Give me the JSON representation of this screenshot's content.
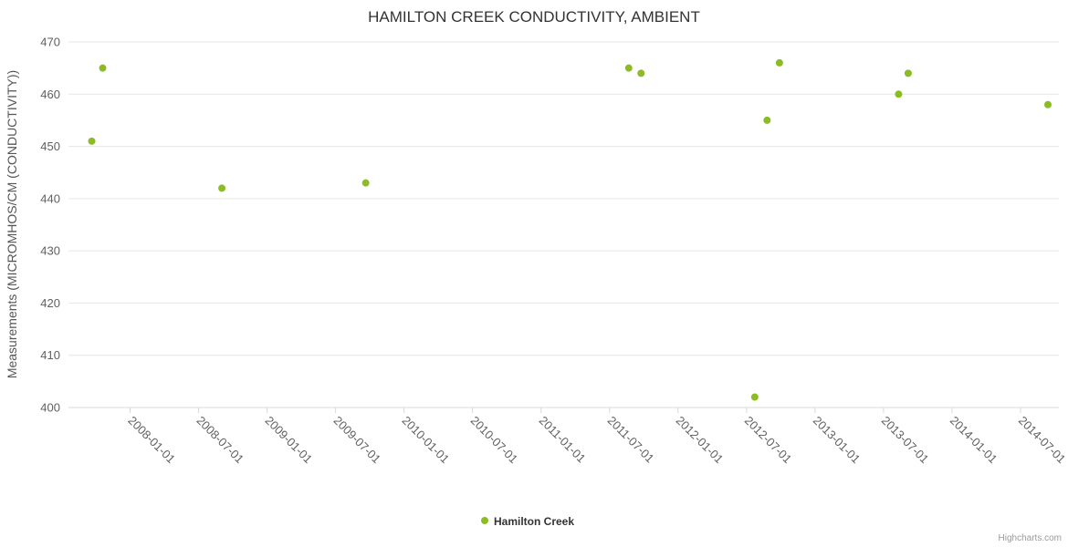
{
  "chart": {
    "credits": "Highcharts.com",
    "colors": {
      "marker": "#8bbc21",
      "grid": "#e6e6e6",
      "axis_line": "#d8d8d8",
      "tick_label": "#606060",
      "title": "#333333"
    }
  },
  "chart_data": {
    "type": "scatter",
    "title": "HAMILTON CREEK CONDUCTIVITY, AMBIENT",
    "xlabel": "",
    "ylabel": "Measurements (MICROMHOS/CM (CONDUCTIVITY))",
    "legend_position": "bottom-center",
    "grid": "horizontal-only",
    "xlim": [
      2007.55,
      2014.78
    ],
    "ylim": [
      400,
      470
    ],
    "y_ticks": [
      400,
      410,
      420,
      430,
      440,
      450,
      460,
      470
    ],
    "x_ticks": [
      "2008-01-01",
      "2008-07-01",
      "2009-01-01",
      "2009-07-01",
      "2010-01-01",
      "2010-07-01",
      "2011-01-01",
      "2011-07-01",
      "2012-01-01",
      "2012-07-01",
      "2013-01-01",
      "2013-07-01",
      "2014-01-01",
      "2014-07-01"
    ],
    "series": [
      {
        "name": "Hamilton Creek",
        "color": "#8bbc21",
        "points": [
          {
            "x": 2007.72,
            "y": 451
          },
          {
            "x": 2007.8,
            "y": 465
          },
          {
            "x": 2008.67,
            "y": 442
          },
          {
            "x": 2009.72,
            "y": 443
          },
          {
            "x": 2011.64,
            "y": 465
          },
          {
            "x": 2011.73,
            "y": 464
          },
          {
            "x": 2012.56,
            "y": 402
          },
          {
            "x": 2012.65,
            "y": 455
          },
          {
            "x": 2012.74,
            "y": 466
          },
          {
            "x": 2013.61,
            "y": 460
          },
          {
            "x": 2013.68,
            "y": 464
          },
          {
            "x": 2014.7,
            "y": 458
          }
        ]
      }
    ]
  }
}
